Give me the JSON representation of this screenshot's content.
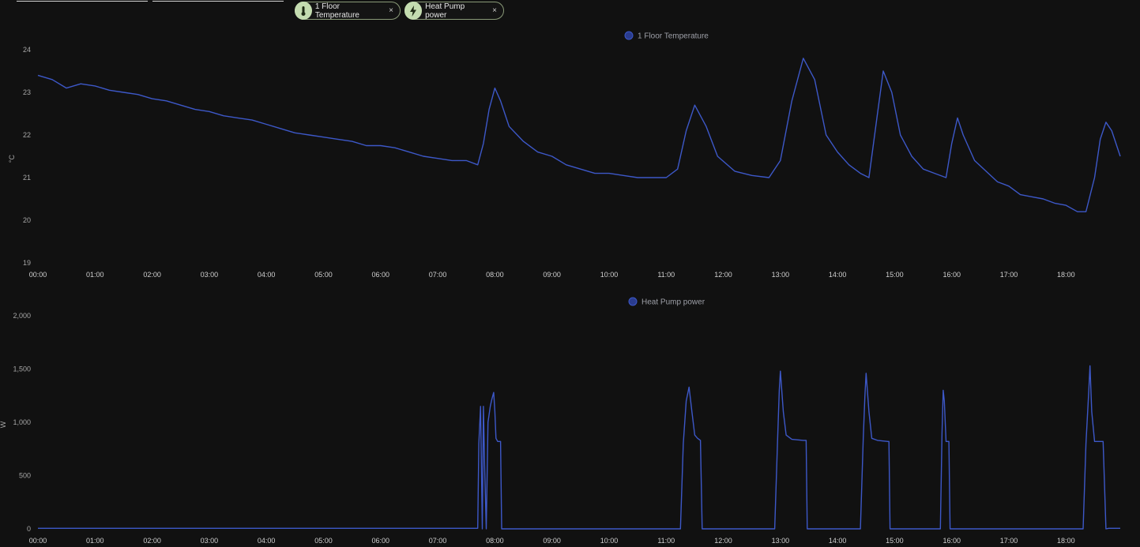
{
  "toolbar": {
    "chips": [
      {
        "label": "1 Floor Temperature",
        "icon": "thermometer-icon"
      },
      {
        "label": "Heat Pump power",
        "icon": "lightning-bolt-icon"
      }
    ],
    "close_symbol": "×",
    "chip_color": "#c4dcb0"
  },
  "chart_data": [
    {
      "type": "line",
      "legend": "1 Floor Temperature",
      "unit": "°C",
      "color": "#3d58c8",
      "ylim": [
        19,
        24
      ],
      "yticks": [
        "19",
        "20",
        "21",
        "22",
        "23",
        "24"
      ],
      "xticks": [
        "00:00",
        "01:00",
        "02:00",
        "03:00",
        "04:00",
        "05:00",
        "06:00",
        "07:00",
        "08:00",
        "09:00",
        "10:00",
        "11:00",
        "12:00",
        "13:00",
        "14:00",
        "15:00",
        "16:00",
        "17:00",
        "18:00"
      ],
      "xlim": [
        0,
        18.95
      ],
      "series": [
        {
          "x": [
            0,
            0.25,
            0.5,
            0.75,
            1,
            1.25,
            1.5,
            1.75,
            2,
            2.25,
            2.5,
            2.75,
            3,
            3.25,
            3.5,
            3.75,
            4,
            4.25,
            4.5,
            4.75,
            5,
            5.25,
            5.5,
            5.75,
            6,
            6.25,
            6.5,
            6.75,
            7,
            7.25,
            7.5,
            7.7,
            7.8,
            7.9,
            8.0,
            8.1,
            8.25,
            8.5,
            8.75,
            9,
            9.25,
            9.5,
            9.75,
            10,
            10.25,
            10.5,
            10.75,
            11,
            11.2,
            11.35,
            11.5,
            11.7,
            11.9,
            12.2,
            12.5,
            12.8,
            13.0,
            13.2,
            13.4,
            13.6,
            13.8,
            14.0,
            14.2,
            14.4,
            14.55,
            14.7,
            14.8,
            14.95,
            15.1,
            15.3,
            15.5,
            15.7,
            15.9,
            16.0,
            16.1,
            16.2,
            16.4,
            16.6,
            16.8,
            17.0,
            17.2,
            17.4,
            17.6,
            17.8,
            18.0,
            18.2,
            18.35,
            18.5,
            18.6,
            18.7,
            18.8,
            18.95
          ],
          "y": [
            23.4,
            23.3,
            23.1,
            23.2,
            23.15,
            23.05,
            23.0,
            22.95,
            22.85,
            22.8,
            22.7,
            22.6,
            22.55,
            22.45,
            22.4,
            22.35,
            22.25,
            22.15,
            22.05,
            22.0,
            21.95,
            21.9,
            21.85,
            21.75,
            21.75,
            21.7,
            21.6,
            21.5,
            21.45,
            21.4,
            21.4,
            21.3,
            21.8,
            22.6,
            23.1,
            22.8,
            22.2,
            21.85,
            21.6,
            21.5,
            21.3,
            21.2,
            21.1,
            21.1,
            21.05,
            21.0,
            21.0,
            21.0,
            21.2,
            22.1,
            22.7,
            22.2,
            21.5,
            21.15,
            21.05,
            21.0,
            21.4,
            22.8,
            23.8,
            23.3,
            22.0,
            21.6,
            21.3,
            21.1,
            21.0,
            22.5,
            23.5,
            23.0,
            22.0,
            21.5,
            21.2,
            21.1,
            21.0,
            21.8,
            22.4,
            22.0,
            21.4,
            21.15,
            20.9,
            20.8,
            20.6,
            20.55,
            20.5,
            20.4,
            20.35,
            20.2,
            20.2,
            21.0,
            21.9,
            22.3,
            22.1,
            21.5
          ]
        }
      ]
    },
    {
      "type": "line",
      "legend": "Heat Pump power",
      "unit": "W",
      "color": "#3d58c8",
      "ylim": [
        0,
        2000
      ],
      "yticks": [
        "0",
        "500",
        "1,000",
        "1,500",
        "2,000"
      ],
      "xticks": [
        "00:00",
        "01:00",
        "02:00",
        "03:00",
        "04:00",
        "05:00",
        "06:00",
        "07:00",
        "08:00",
        "09:00",
        "10:00",
        "11:00",
        "12:00",
        "13:00",
        "14:00",
        "15:00",
        "16:00",
        "17:00",
        "18:00"
      ],
      "xlim": [
        0,
        18.95
      ],
      "series": [
        {
          "x": [
            0,
            7.7,
            7.72,
            7.75,
            7.78,
            7.8,
            7.82,
            7.85,
            7.88,
            7.92,
            7.95,
            7.98,
            8.0,
            8.02,
            8.05,
            8.1,
            8.12,
            8.14,
            11.25,
            11.3,
            11.35,
            11.4,
            11.45,
            11.5,
            11.55,
            11.6,
            11.63,
            11.65,
            12.9,
            12.95,
            12.98,
            13.0,
            13.05,
            13.1,
            13.2,
            13.4,
            13.45,
            13.47,
            14.4,
            14.45,
            14.48,
            14.5,
            14.55,
            14.6,
            14.7,
            14.88,
            14.9,
            14.92,
            15.8,
            15.83,
            15.85,
            15.87,
            15.9,
            15.92,
            15.95,
            15.97,
            17.0,
            18.3,
            18.35,
            18.4,
            18.42,
            18.45,
            18.5,
            18.55,
            18.65,
            18.7,
            18.75,
            18.95
          ],
          "y": [
            5,
            5,
            800,
            1150,
            0,
            1150,
            600,
            0,
            1000,
            1150,
            1220,
            1280,
            1100,
            850,
            820,
            820,
            0,
            0,
            0,
            800,
            1200,
            1330,
            1100,
            880,
            850,
            830,
            0,
            0,
            0,
            820,
            1300,
            1480,
            1100,
            880,
            840,
            830,
            830,
            0,
            0,
            850,
            1250,
            1460,
            1100,
            850,
            830,
            820,
            820,
            0,
            0,
            900,
            1300,
            1200,
            820,
            820,
            820,
            0,
            0,
            0,
            800,
            1300,
            1530,
            1100,
            820,
            820,
            820,
            0,
            5,
            5
          ]
        }
      ]
    }
  ]
}
